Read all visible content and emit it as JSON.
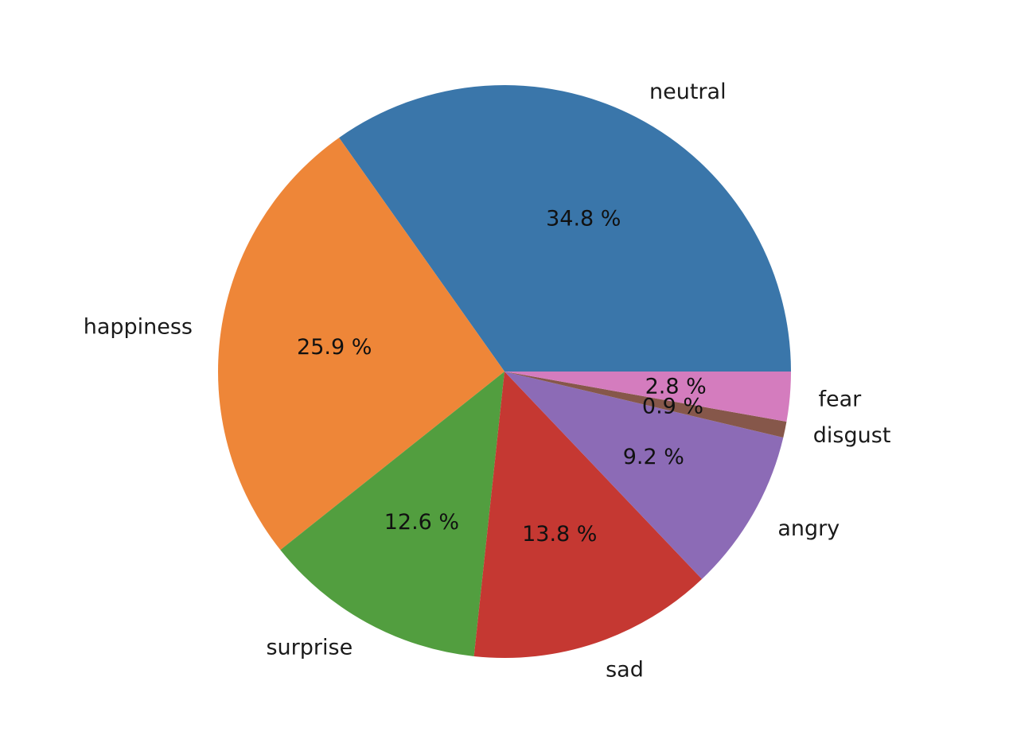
{
  "chart_data": {
    "type": "pie",
    "title": "",
    "start_angle_deg": 0,
    "direction": "counterclockwise",
    "slices": [
      {
        "label": "neutral",
        "value": 34.8,
        "pct_text": "34.8 %",
        "color": "#3a76aa"
      },
      {
        "label": "happiness",
        "value": 25.9,
        "pct_text": "25.9 %",
        "color": "#ee8638"
      },
      {
        "label": "surprise",
        "value": 12.6,
        "pct_text": "12.6 %",
        "color": "#529e3f"
      },
      {
        "label": "sad",
        "value": 13.8,
        "pct_text": "13.8 %",
        "color": "#c53832"
      },
      {
        "label": "angry",
        "value": 9.2,
        "pct_text": "9.2 %",
        "color": "#8c6bb6"
      },
      {
        "label": "disgust",
        "value": 0.9,
        "pct_text": "0.9 %",
        "color": "#86574a"
      },
      {
        "label": "fear",
        "value": 2.8,
        "pct_text": "2.8 %",
        "color": "#d47cbe"
      }
    ]
  }
}
